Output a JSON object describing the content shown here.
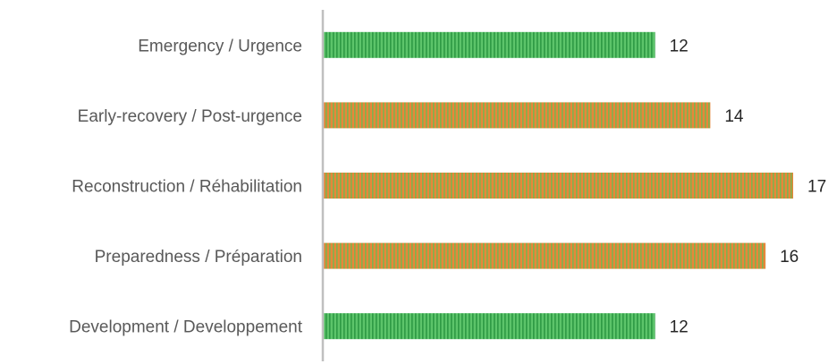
{
  "chart_data": {
    "type": "bar",
    "orientation": "horizontal",
    "categories": [
      "Emergency / Urgence",
      "Early-recovery / Post-urgence",
      "Reconstruction / Réhabilitation",
      "Preparedness / Préparation",
      "Development / Developpement"
    ],
    "values": [
      12,
      14,
      17,
      16,
      12
    ],
    "bar_styles": [
      "green",
      "orange",
      "orange",
      "orange",
      "green"
    ],
    "colors": {
      "green_base": "#5cc46a",
      "green_stripe": "#2e9a44",
      "orange_base": "#e8863a",
      "orange_stripe": "#7fb24e",
      "axis": "#bfbfbf"
    },
    "title": "",
    "xlabel": "",
    "ylabel": "",
    "xlim": [
      0,
      17
    ],
    "grid": false,
    "legend": "none",
    "data_labels": true
  }
}
